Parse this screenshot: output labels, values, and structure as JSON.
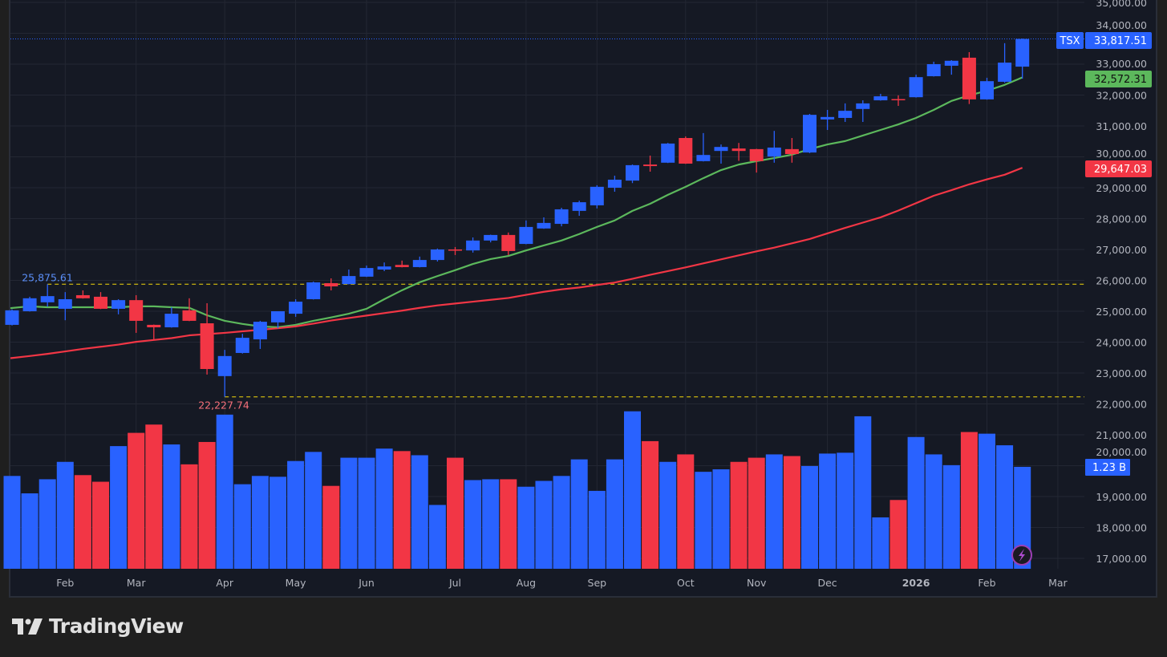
{
  "brand": {
    "name": "TradingView"
  },
  "colors": {
    "up": "#2962ff",
    "down": "#f23645",
    "ma_fast": "#5cb85c",
    "ma_slow": "#f23645",
    "level_line": "#f5d90a",
    "background": "#151924",
    "grid": "#232733",
    "page": "#1f1f1f"
  },
  "chart_data": {
    "type": "candlestick",
    "symbol": "TSX",
    "interval": "1W",
    "last_price_label": "33,817.51",
    "ma_fast_label": "32,572.31",
    "ma_slow_label": "29,647.03",
    "volume_label": "1.23 B",
    "high_marker": {
      "label": "25,875.61",
      "value": 25875.61,
      "date": "2025-01-27"
    },
    "low_marker": {
      "label": "22,227.74",
      "value": 22227.74,
      "date": "2025-04-07"
    },
    "ylim": [
      16700,
      35000
    ],
    "yticks": [
      "17,000.00",
      "18,000.00",
      "19,000.00",
      "20,000.00",
      "21,000.00",
      "22,000.00",
      "23,000.00",
      "24,000.00",
      "25,000.00",
      "26,000.00",
      "27,000.00",
      "28,000.00",
      "29,000.00",
      "30,000.00",
      "31,000.00",
      "32,000.00",
      "33,000.00",
      "34,000.00",
      "35,000.00"
    ],
    "ytick_values": [
      17000,
      18000,
      19000,
      20000,
      21000,
      22000,
      23000,
      24000,
      25000,
      26000,
      27000,
      28000,
      29000,
      30000,
      31000,
      32000,
      33000,
      34000,
      35000
    ],
    "xticks": [
      {
        "label": "Feb",
        "date": "2025-02-03"
      },
      {
        "label": "Mar",
        "date": "2025-03-03"
      },
      {
        "label": "Apr",
        "date": "2025-04-07"
      },
      {
        "label": "May",
        "date": "2025-05-05"
      },
      {
        "label": "Jun",
        "date": "2025-06-02"
      },
      {
        "label": "Jul",
        "date": "2025-07-07"
      },
      {
        "label": "Aug",
        "date": "2025-08-04"
      },
      {
        "label": "Sep",
        "date": "2025-09-01"
      },
      {
        "label": "Oct",
        "date": "2025-10-06"
      },
      {
        "label": "Nov",
        "date": "2025-11-03"
      },
      {
        "label": "Dec",
        "date": "2025-12-01"
      },
      {
        "label": "2026",
        "date": "2026-01-05",
        "bold": true
      },
      {
        "label": "Feb",
        "date": "2026-02-02"
      },
      {
        "label": "Mar",
        "date": "2026-03-02"
      }
    ],
    "candle_fields": [
      "date",
      "open",
      "high",
      "low",
      "close",
      "volume_billions"
    ],
    "candles": [
      [
        "2025-01-13",
        24560,
        25060,
        24540,
        25030,
        1.12
      ],
      [
        "2025-01-20",
        25000,
        25470,
        24990,
        25420,
        0.91
      ],
      [
        "2025-01-27",
        25290,
        25875.61,
        25150,
        25490,
        1.08
      ],
      [
        "2025-02-03",
        25080,
        25620,
        24710,
        25390,
        1.29
      ],
      [
        "2025-02-10",
        25520,
        25675,
        25410,
        25420,
        1.13
      ],
      [
        "2025-02-17",
        25470,
        25620,
        25070,
        25080,
        1.05
      ],
      [
        "2025-02-24",
        25080,
        25390,
        24900,
        25360,
        1.48
      ],
      [
        "2025-03-03",
        25360,
        25520,
        24300,
        24690,
        1.64
      ],
      [
        "2025-03-10",
        24560,
        24570,
        24090,
        24480,
        1.74
      ],
      [
        "2025-03-17",
        24480,
        25130,
        24470,
        24920,
        1.5
      ],
      [
        "2025-03-24",
        25030,
        25420,
        24680,
        24690,
        1.26
      ],
      [
        "2025-03-31",
        24610,
        25260,
        22950,
        23130,
        1.53
      ],
      [
        "2025-04-07",
        22900,
        23750,
        22227.74,
        23550,
        1.86
      ],
      [
        "2025-04-14",
        23650,
        24270,
        23630,
        24140,
        1.02
      ],
      [
        "2025-04-21",
        24090,
        24690,
        23780,
        24660,
        1.12
      ],
      [
        "2025-04-28",
        24640,
        25000,
        24450,
        25000,
        1.11
      ],
      [
        "2025-05-05",
        24920,
        25390,
        24820,
        25310,
        1.3
      ],
      [
        "2025-05-12",
        25390,
        25960,
        25380,
        25935,
        1.41
      ],
      [
        "2025-05-19",
        25910,
        26065,
        25675,
        25805,
        1.0
      ],
      [
        "2025-05-26",
        25880,
        26350,
        25870,
        26140,
        1.34
      ],
      [
        "2025-06-02",
        26120,
        26480,
        26110,
        26400,
        1.34
      ],
      [
        "2025-06-09",
        26350,
        26580,
        26300,
        26450,
        1.45
      ],
      [
        "2025-06-16",
        26500,
        26640,
        26420,
        26430,
        1.42
      ],
      [
        "2025-06-23",
        26430,
        26770,
        26420,
        26660,
        1.37
      ],
      [
        "2025-06-30",
        26660,
        27030,
        26610,
        27000,
        0.77
      ],
      [
        "2025-07-07",
        27000,
        27080,
        26820,
        26990,
        1.34
      ],
      [
        "2025-07-14",
        26970,
        27390,
        26900,
        27290,
        1.07
      ],
      [
        "2025-07-21",
        27290,
        27480,
        27230,
        27470,
        1.08
      ],
      [
        "2025-07-28",
        27470,
        27550,
        26820,
        26950,
        1.08
      ],
      [
        "2025-08-04",
        27180,
        27940,
        27170,
        27730,
        0.99
      ],
      [
        "2025-08-11",
        27680,
        28040,
        27670,
        27860,
        1.06
      ],
      [
        "2025-08-18",
        27830,
        28350,
        27750,
        28300,
        1.12
      ],
      [
        "2025-08-25",
        28250,
        28580,
        28090,
        28530,
        1.32
      ],
      [
        "2025-09-01",
        28430,
        29080,
        28330,
        29030,
        0.94
      ],
      [
        "2025-09-08",
        29000,
        29390,
        28870,
        29260,
        1.32
      ],
      [
        "2025-09-15",
        29230,
        29750,
        29150,
        29730,
        1.9
      ],
      [
        "2025-09-22",
        29750,
        30040,
        29520,
        29700,
        1.54
      ],
      [
        "2025-09-29",
        29810,
        30450,
        29800,
        30430,
        1.29
      ],
      [
        "2025-10-06",
        30610,
        30660,
        29770,
        29780,
        1.38
      ],
      [
        "2025-10-13",
        29860,
        30770,
        29850,
        30060,
        1.17
      ],
      [
        "2025-10-20",
        30190,
        30400,
        29780,
        30320,
        1.2
      ],
      [
        "2025-10-27",
        30270,
        30450,
        29870,
        30190,
        1.29
      ],
      [
        "2025-11-03",
        30250,
        30260,
        29490,
        29860,
        1.34
      ],
      [
        "2025-11-10",
        30010,
        30840,
        29810,
        30300,
        1.38
      ],
      [
        "2025-11-17",
        30250,
        30610,
        29810,
        30090,
        1.36
      ],
      [
        "2025-11-24",
        30140,
        31390,
        30120,
        31360,
        1.24
      ],
      [
        "2025-12-01",
        31210,
        31520,
        30870,
        31290,
        1.39
      ],
      [
        "2025-12-08",
        31260,
        31730,
        31130,
        31490,
        1.4
      ],
      [
        "2025-12-15",
        31550,
        31830,
        31130,
        31730,
        1.84
      ],
      [
        "2025-12-22",
        31830,
        32040,
        31820,
        31960,
        0.62
      ],
      [
        "2025-12-29",
        31870,
        31990,
        31650,
        31850,
        0.83
      ],
      [
        "2026-01-05",
        31930,
        32660,
        31920,
        32580,
        1.59
      ],
      [
        "2026-01-12",
        32610,
        33080,
        32600,
        33000,
        1.38
      ],
      [
        "2026-01-19",
        32950,
        33130,
        32660,
        33110,
        1.25
      ],
      [
        "2026-01-26",
        33210,
        33390,
        31710,
        31860,
        1.65
      ],
      [
        "2026-02-02",
        31860,
        32560,
        31850,
        32450,
        1.63
      ],
      [
        "2026-02-09",
        32430,
        33680,
        32400,
        33050,
        1.49
      ],
      [
        "2026-02-16",
        32920,
        33830,
        32530,
        33817.51,
        1.23
      ]
    ],
    "ma_fast": [
      25100,
      25160,
      25130,
      25130,
      25130,
      25130,
      25130,
      25160,
      25160,
      25130,
      25110,
      24870,
      24690,
      24590,
      24510,
      24480,
      24560,
      24690,
      24800,
      24920,
      25080,
      25390,
      25680,
      25940,
      26140,
      26330,
      26530,
      26690,
      26790,
      26970,
      27130,
      27290,
      27500,
      27730,
      27940,
      28250,
      28480,
      28770,
      29030,
      29310,
      29570,
      29750,
      29860,
      29960,
      30070,
      30250,
      30400,
      30510,
      30690,
      30870,
      31050,
      31260,
      31520,
      31810,
      31990,
      32140,
      32330,
      32572.31
    ],
    "ma_slow": [
      23480,
      23550,
      23620,
      23700,
      23780,
      23850,
      23920,
      24010,
      24070,
      24130,
      24220,
      24260,
      24300,
      24350,
      24400,
      24450,
      24510,
      24600,
      24700,
      24780,
      24860,
      24940,
      25020,
      25110,
      25190,
      25250,
      25310,
      25370,
      25430,
      25530,
      25630,
      25710,
      25770,
      25850,
      25930,
      26050,
      26180,
      26300,
      26420,
      26550,
      26680,
      26810,
      26940,
      27060,
      27200,
      27340,
      27520,
      27700,
      27870,
      28040,
      28260,
      28500,
      28740,
      28920,
      29110,
      29270,
      29420,
      29647.03
    ]
  }
}
